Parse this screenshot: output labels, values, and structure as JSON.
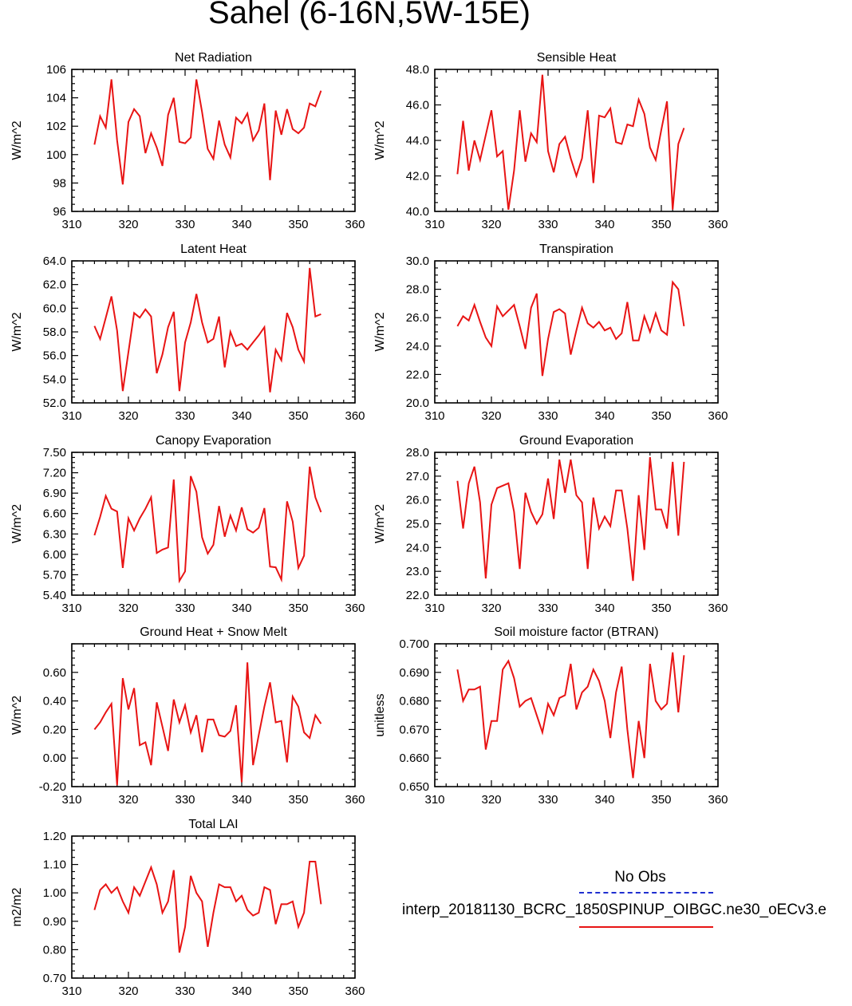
{
  "title": "Sahel (6-16N,5W-15E)",
  "legend": {
    "obs_label": "No Obs",
    "run_label": "interp_20181130_BCRC_1850SPINUP_OIBGC.ne30_oECv3.e",
    "obs_color": "#1f2fd0",
    "run_color": "#e81414"
  },
  "chart_data": [
    {
      "type": "line",
      "title": "Net Radiation",
      "ylabel": "W/m^2",
      "xlim": [
        310,
        360
      ],
      "ylim": [
        96,
        106
      ],
      "xticks": [
        310,
        320,
        330,
        340,
        350,
        360
      ],
      "yticks": [
        96,
        98,
        100,
        102,
        104,
        106
      ],
      "ytick_labels": [
        "96",
        "98",
        "100",
        "102",
        "104",
        "106"
      ],
      "x": [
        314,
        315,
        316,
        317,
        318,
        319,
        320,
        321,
        322,
        323,
        324,
        325,
        326,
        327,
        328,
        329,
        330,
        331,
        332,
        333,
        334,
        335,
        336,
        337,
        338,
        339,
        340,
        341,
        342,
        343,
        344,
        345,
        346,
        347,
        348,
        349,
        350,
        351,
        352,
        353,
        354
      ],
      "series": [
        {
          "name": "interp_20181130_BCRC_1850SPINUP_OIBGC.ne30_oECv3.e",
          "values": [
            100.7,
            102.7,
            101.9,
            105.3,
            101.0,
            97.9,
            102.3,
            103.2,
            102.7,
            100.1,
            101.5,
            100.5,
            99.2,
            102.8,
            104.0,
            100.9,
            100.8,
            101.2,
            105.3,
            103.0,
            100.4,
            99.7,
            102.4,
            100.7,
            99.8,
            102.6,
            102.2,
            102.9,
            101.0,
            101.7,
            103.6,
            98.2,
            103.1,
            101.4,
            103.2,
            101.8,
            101.5,
            101.9,
            103.6,
            103.4,
            104.5
          ]
        }
      ]
    },
    {
      "type": "line",
      "title": "Sensible Heat",
      "ylabel": "W/m^2",
      "xlim": [
        310,
        360
      ],
      "ylim": [
        40,
        48
      ],
      "xticks": [
        310,
        320,
        330,
        340,
        350,
        360
      ],
      "yticks": [
        40,
        42,
        44,
        46,
        48
      ],
      "ytick_labels": [
        "40.0",
        "42.0",
        "44.0",
        "46.0",
        "48.0"
      ],
      "x": [
        314,
        315,
        316,
        317,
        318,
        319,
        320,
        321,
        322,
        323,
        324,
        325,
        326,
        327,
        328,
        329,
        330,
        331,
        332,
        333,
        334,
        335,
        336,
        337,
        338,
        339,
        340,
        341,
        342,
        343,
        344,
        345,
        346,
        347,
        348,
        349,
        350,
        351,
        352,
        353,
        354
      ],
      "series": [
        {
          "name": "interp_20181130_BCRC_1850SPINUP_OIBGC.ne30_oECv3.e",
          "values": [
            42.1,
            45.1,
            42.3,
            44.0,
            42.9,
            44.3,
            45.7,
            43.1,
            43.4,
            40.1,
            42.3,
            45.7,
            42.8,
            44.4,
            43.9,
            47.7,
            43.4,
            42.2,
            43.8,
            44.2,
            43.0,
            42.0,
            43.0,
            45.7,
            41.6,
            45.4,
            45.3,
            45.8,
            43.9,
            43.8,
            44.9,
            44.8,
            46.3,
            45.5,
            43.6,
            42.9,
            44.6,
            46.2,
            40.1,
            43.8,
            44.7
          ]
        }
      ]
    },
    {
      "type": "line",
      "title": "Latent Heat",
      "ylabel": "W/m^2",
      "xlim": [
        310,
        360
      ],
      "ylim": [
        52,
        64
      ],
      "xticks": [
        310,
        320,
        330,
        340,
        350,
        360
      ],
      "yticks": [
        52,
        54,
        56,
        58,
        60,
        62,
        64
      ],
      "ytick_labels": [
        "52.0",
        "54.0",
        "56.0",
        "58.0",
        "60.0",
        "62.0",
        "64.0"
      ],
      "x": [
        314,
        315,
        316,
        317,
        318,
        319,
        320,
        321,
        322,
        323,
        324,
        325,
        326,
        327,
        328,
        329,
        330,
        331,
        332,
        333,
        334,
        335,
        336,
        337,
        338,
        339,
        340,
        341,
        342,
        343,
        344,
        345,
        346,
        347,
        348,
        349,
        350,
        351,
        352,
        353,
        354
      ],
      "series": [
        {
          "name": "interp_20181130_BCRC_1850SPINUP_OIBGC.ne30_oECv3.e",
          "values": [
            58.5,
            57.4,
            59.2,
            61.0,
            58.1,
            53.0,
            56.3,
            59.6,
            59.2,
            59.9,
            59.3,
            54.5,
            56.1,
            58.4,
            59.7,
            53.0,
            57.1,
            58.8,
            61.2,
            58.8,
            57.1,
            57.4,
            59.3,
            55.0,
            58.0,
            56.8,
            57.0,
            56.5,
            57.1,
            57.7,
            58.4,
            52.9,
            56.5,
            55.6,
            59.6,
            58.4,
            56.5,
            55.5,
            63.4,
            59.3,
            59.5
          ]
        }
      ]
    },
    {
      "type": "line",
      "title": "Transpiration",
      "ylabel": "W/m^2",
      "xlim": [
        310,
        360
      ],
      "ylim": [
        20,
        30
      ],
      "xticks": [
        310,
        320,
        330,
        340,
        350,
        360
      ],
      "yticks": [
        20,
        22,
        24,
        26,
        28,
        30
      ],
      "ytick_labels": [
        "20.0",
        "22.0",
        "24.0",
        "26.0",
        "28.0",
        "30.0"
      ],
      "x": [
        314,
        315,
        316,
        317,
        318,
        319,
        320,
        321,
        322,
        323,
        324,
        325,
        326,
        327,
        328,
        329,
        330,
        331,
        332,
        333,
        334,
        335,
        336,
        337,
        338,
        339,
        340,
        341,
        342,
        343,
        344,
        345,
        346,
        347,
        348,
        349,
        350,
        351,
        352,
        353,
        354
      ],
      "series": [
        {
          "name": "interp_20181130_BCRC_1850SPINUP_OIBGC.ne30_oECv3.e",
          "values": [
            25.4,
            26.1,
            25.8,
            26.9,
            25.7,
            24.6,
            24.0,
            26.8,
            26.1,
            26.5,
            26.9,
            25.4,
            23.8,
            26.7,
            27.7,
            21.9,
            24.5,
            26.4,
            26.6,
            26.3,
            23.4,
            25.1,
            26.7,
            25.6,
            25.3,
            25.7,
            25.1,
            25.3,
            24.5,
            24.9,
            27.1,
            24.4,
            24.4,
            26.1,
            25.0,
            26.3,
            25.1,
            24.8,
            28.5,
            28.0,
            25.4
          ]
        }
      ]
    },
    {
      "type": "line",
      "title": "Canopy Evaporation",
      "ylabel": "W/m^2",
      "xlim": [
        310,
        360
      ],
      "ylim": [
        5.4,
        7.5
      ],
      "xticks": [
        310,
        320,
        330,
        340,
        350,
        360
      ],
      "yticks": [
        5.4,
        5.7,
        6.0,
        6.3,
        6.6,
        6.9,
        7.2,
        7.5
      ],
      "ytick_labels": [
        "5.40",
        "5.70",
        "6.00",
        "6.30",
        "6.60",
        "6.90",
        "7.20",
        "7.50"
      ],
      "x": [
        314,
        315,
        316,
        317,
        318,
        319,
        320,
        321,
        322,
        323,
        324,
        325,
        326,
        327,
        328,
        329,
        330,
        331,
        332,
        333,
        334,
        335,
        336,
        337,
        338,
        339,
        340,
        341,
        342,
        343,
        344,
        345,
        346,
        347,
        348,
        349,
        350,
        351,
        352,
        353,
        354
      ],
      "series": [
        {
          "name": "interp_20181130_BCRC_1850SPINUP_OIBGC.ne30_oECv3.e",
          "values": [
            6.28,
            6.55,
            6.86,
            6.67,
            6.63,
            5.8,
            6.53,
            6.35,
            6.53,
            6.67,
            6.84,
            6.02,
            6.07,
            6.1,
            7.1,
            5.61,
            5.75,
            7.15,
            6.92,
            6.25,
            6.01,
            6.14,
            6.71,
            6.26,
            6.57,
            6.35,
            6.69,
            6.37,
            6.32,
            6.39,
            6.68,
            5.82,
            5.81,
            5.63,
            6.78,
            6.48,
            5.8,
            5.98,
            7.29,
            6.84,
            6.62
          ]
        }
      ]
    },
    {
      "type": "line",
      "title": "Ground Evaporation",
      "ylabel": "W/m^2",
      "xlim": [
        310,
        360
      ],
      "ylim": [
        22,
        28
      ],
      "xticks": [
        310,
        320,
        330,
        340,
        350,
        360
      ],
      "yticks": [
        22,
        23,
        24,
        25,
        26,
        27,
        28
      ],
      "ytick_labels": [
        "22.0",
        "23.0",
        "24.0",
        "25.0",
        "26.0",
        "27.0",
        "28.0"
      ],
      "x": [
        314,
        315,
        316,
        317,
        318,
        319,
        320,
        321,
        322,
        323,
        324,
        325,
        326,
        327,
        328,
        329,
        330,
        331,
        332,
        333,
        334,
        335,
        336,
        337,
        338,
        339,
        340,
        341,
        342,
        343,
        344,
        345,
        346,
        347,
        348,
        349,
        350,
        351,
        352,
        353,
        354
      ],
      "series": [
        {
          "name": "interp_20181130_BCRC_1850SPINUP_OIBGC.ne30_oECv3.e",
          "values": [
            26.8,
            24.8,
            26.7,
            27.4,
            25.9,
            22.7,
            25.8,
            26.5,
            26.6,
            26.7,
            25.5,
            23.1,
            26.3,
            25.5,
            25.0,
            25.4,
            26.9,
            25.2,
            27.7,
            26.3,
            27.7,
            26.2,
            25.9,
            23.1,
            26.1,
            24.8,
            25.3,
            24.9,
            26.4,
            26.4,
            24.8,
            22.6,
            26.2,
            23.9,
            27.8,
            25.6,
            25.6,
            24.8,
            27.6,
            24.5,
            27.6
          ]
        }
      ]
    },
    {
      "type": "line",
      "title": "Ground Heat + Snow Melt",
      "ylabel": "W/m^2",
      "xlim": [
        310,
        360
      ],
      "ylim": [
        -0.2,
        0.8
      ],
      "xticks": [
        310,
        320,
        330,
        340,
        350,
        360
      ],
      "yticks": [
        -0.2,
        0.0,
        0.2,
        0.4,
        0.6
      ],
      "ytick_labels": [
        "-0.20",
        "0.00",
        "0.20",
        "0.40",
        "0.60"
      ],
      "x": [
        314,
        315,
        316,
        317,
        318,
        319,
        320,
        321,
        322,
        323,
        324,
        325,
        326,
        327,
        328,
        329,
        330,
        331,
        332,
        333,
        334,
        335,
        336,
        337,
        338,
        339,
        340,
        341,
        342,
        343,
        344,
        345,
        346,
        347,
        348,
        349,
        350,
        351,
        352,
        353,
        354
      ],
      "series": [
        {
          "name": "interp_20181130_BCRC_1850SPINUP_OIBGC.ne30_oECv3.e",
          "values": [
            0.2,
            0.25,
            0.32,
            0.38,
            -0.19,
            0.56,
            0.34,
            0.49,
            0.09,
            0.11,
            -0.05,
            0.39,
            0.22,
            0.05,
            0.41,
            0.25,
            0.37,
            0.18,
            0.3,
            0.04,
            0.27,
            0.27,
            0.16,
            0.15,
            0.19,
            0.37,
            -0.17,
            0.67,
            -0.05,
            0.16,
            0.36,
            0.53,
            0.25,
            0.26,
            -0.03,
            0.43,
            0.36,
            0.18,
            0.14,
            0.3,
            0.24
          ]
        }
      ]
    },
    {
      "type": "line",
      "title": "Soil moisture factor (BTRAN)",
      "ylabel": "unitless",
      "xlim": [
        310,
        360
      ],
      "ylim": [
        0.65,
        0.7
      ],
      "xticks": [
        310,
        320,
        330,
        340,
        350,
        360
      ],
      "yticks": [
        0.65,
        0.66,
        0.67,
        0.68,
        0.69,
        0.7
      ],
      "ytick_labels": [
        "0.650",
        "0.660",
        "0.670",
        "0.680",
        "0.690",
        "0.700"
      ],
      "x": [
        314,
        315,
        316,
        317,
        318,
        319,
        320,
        321,
        322,
        323,
        324,
        325,
        326,
        327,
        328,
        329,
        330,
        331,
        332,
        333,
        334,
        335,
        336,
        337,
        338,
        339,
        340,
        341,
        342,
        343,
        344,
        345,
        346,
        347,
        348,
        349,
        350,
        351,
        352,
        353,
        354
      ],
      "series": [
        {
          "name": "interp_20181130_BCRC_1850SPINUP_OIBGC.ne30_oECv3.e",
          "values": [
            0.691,
            0.68,
            0.684,
            0.684,
            0.685,
            0.663,
            0.673,
            0.673,
            0.691,
            0.694,
            0.688,
            0.678,
            0.68,
            0.681,
            0.675,
            0.669,
            0.679,
            0.675,
            0.681,
            0.682,
            0.693,
            0.677,
            0.683,
            0.685,
            0.691,
            0.687,
            0.68,
            0.667,
            0.683,
            0.692,
            0.67,
            0.653,
            0.673,
            0.66,
            0.693,
            0.68,
            0.677,
            0.679,
            0.697,
            0.676,
            0.696
          ]
        }
      ]
    },
    {
      "type": "line",
      "title": "Total LAI",
      "ylabel": "m2/m2",
      "xlim": [
        310,
        360
      ],
      "ylim": [
        0.7,
        1.2
      ],
      "xticks": [
        310,
        320,
        330,
        340,
        350,
        360
      ],
      "yticks": [
        0.7,
        0.8,
        0.9,
        1.0,
        1.1,
        1.2
      ],
      "ytick_labels": [
        "0.70",
        "0.80",
        "0.90",
        "1.00",
        "1.10",
        "1.20"
      ],
      "x": [
        314,
        315,
        316,
        317,
        318,
        319,
        320,
        321,
        322,
        323,
        324,
        325,
        326,
        327,
        328,
        329,
        330,
        331,
        332,
        333,
        334,
        335,
        336,
        337,
        338,
        339,
        340,
        341,
        342,
        343,
        344,
        345,
        346,
        347,
        348,
        349,
        350,
        351,
        352,
        353,
        354
      ],
      "series": [
        {
          "name": "interp_20181130_BCRC_1850SPINUP_OIBGC.ne30_oECv3.e",
          "values": [
            0.94,
            1.01,
            1.03,
            1.0,
            1.02,
            0.97,
            0.93,
            1.02,
            0.99,
            1.04,
            1.09,
            1.03,
            0.93,
            0.97,
            1.08,
            0.79,
            0.88,
            1.06,
            1.0,
            0.97,
            0.81,
            0.93,
            1.03,
            1.02,
            1.02,
            0.97,
            0.99,
            0.94,
            0.92,
            0.93,
            1.02,
            1.01,
            0.89,
            0.96,
            0.96,
            0.97,
            0.88,
            0.93,
            1.11,
            1.11,
            0.96
          ]
        }
      ]
    }
  ]
}
